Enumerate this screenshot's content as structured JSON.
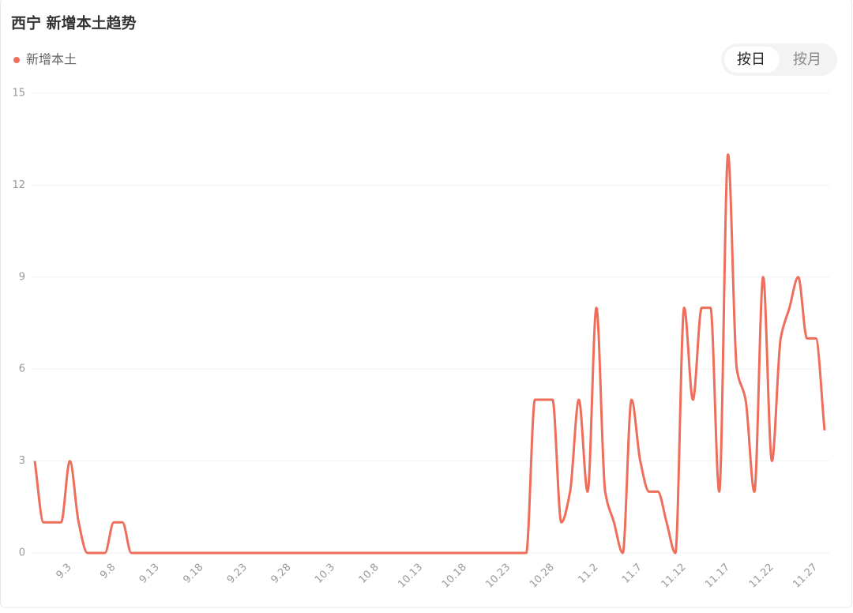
{
  "chart_data": {
    "type": "line",
    "title": "西宁 新增本土趋势",
    "controls": [
      "按日",
      "按月"
    ],
    "categories": [
      null,
      null,
      null,
      null,
      "9.3",
      null,
      null,
      null,
      null,
      "9.8",
      null,
      null,
      null,
      null,
      "9.13",
      null,
      null,
      null,
      null,
      "9.18",
      null,
      null,
      null,
      null,
      "9.23",
      null,
      null,
      null,
      null,
      "9.28",
      null,
      null,
      null,
      null,
      "10.3",
      null,
      null,
      null,
      null,
      "10.8",
      null,
      null,
      null,
      null,
      "10.13",
      null,
      null,
      null,
      null,
      "10.18",
      null,
      null,
      null,
      null,
      "10.23",
      null,
      null,
      null,
      null,
      "10.28",
      null,
      null,
      null,
      null,
      "11.2",
      null,
      null,
      null,
      null,
      "11.7",
      null,
      null,
      null,
      null,
      "11.12",
      null,
      null,
      null,
      null,
      "11.17",
      null,
      null,
      null,
      null,
      "11.22",
      null,
      null,
      null,
      null,
      "11.27",
      null
    ],
    "series": [
      {
        "name": "新增本土",
        "color": "#ef6e5b",
        "values": [
          3,
          1,
          1,
          1,
          3,
          1,
          0,
          0,
          0,
          1,
          1,
          0,
          0,
          0,
          0,
          0,
          0,
          0,
          0,
          0,
          0,
          0,
          0,
          0,
          0,
          0,
          0,
          0,
          0,
          0,
          0,
          0,
          0,
          0,
          0,
          0,
          0,
          0,
          0,
          0,
          0,
          0,
          0,
          0,
          0,
          0,
          0,
          0,
          0,
          0,
          0,
          0,
          0,
          0,
          0,
          0,
          0,
          5,
          5,
          5,
          1,
          2,
          5,
          2,
          8,
          2,
          1,
          0,
          5,
          3,
          2,
          2,
          1,
          0,
          8,
          5,
          8,
          8,
          2,
          13,
          6,
          5,
          2,
          9,
          3,
          7,
          8,
          9,
          7,
          7,
          4
        ]
      }
    ],
    "ylim": [
      0,
      15
    ],
    "yticks": [
      0,
      3,
      6,
      9,
      12,
      15
    ],
    "grid": true
  }
}
